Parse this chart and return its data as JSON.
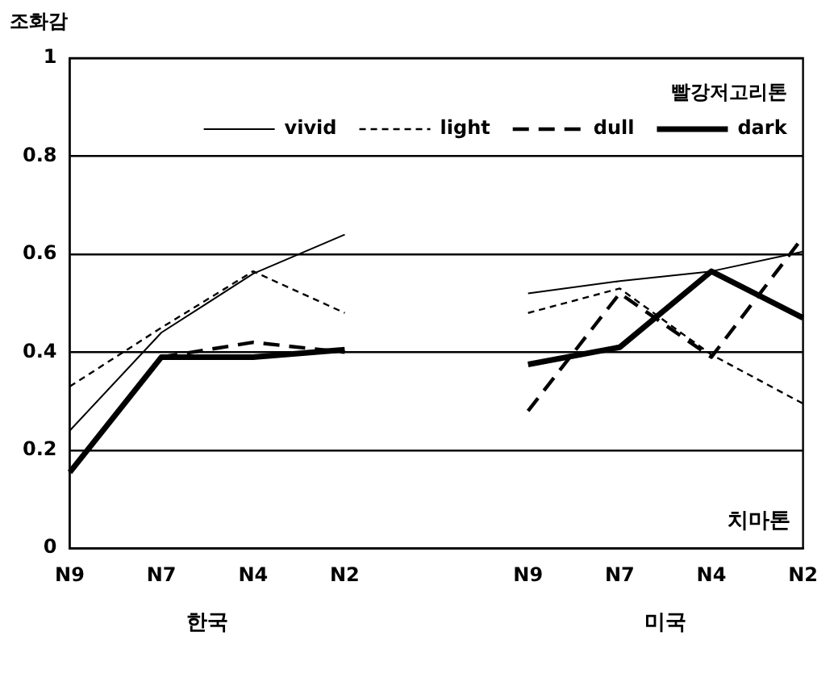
{
  "chart_data": {
    "type": "line",
    "ylabel": "조화감",
    "legend_title": "빨강저고리톤",
    "annotations": [
      "치마톤",
      "한국",
      "미국"
    ],
    "categories": [
      "N9",
      "N7",
      "N4",
      "N2",
      null,
      "N9",
      "N7",
      "N4",
      "N2"
    ],
    "series": [
      {
        "name": "vivid",
        "color": "#000000",
        "line_style": "solid",
        "values": [
          0.24,
          0.44,
          0.56,
          0.64,
          null,
          0.52,
          0.545,
          0.565,
          0.605
        ]
      },
      {
        "name": "light",
        "color": "#000000",
        "line_style": "dotted",
        "values": [
          0.33,
          0.45,
          0.565,
          0.48,
          null,
          0.48,
          0.53,
          0.395,
          0.295
        ]
      },
      {
        "name": "dull",
        "color": "#000000",
        "line_style": "dashed",
        "values": [
          null,
          0.39,
          0.42,
          0.4,
          null,
          0.28,
          0.52,
          0.39,
          0.635
        ]
      },
      {
        "name": "dark",
        "color": "#000000",
        "line_style": "solid",
        "values": [
          0.155,
          0.39,
          0.39,
          0.405,
          null,
          0.375,
          0.41,
          0.565,
          0.47
        ]
      }
    ],
    "ylim": [
      0,
      1
    ],
    "yticks": [
      0,
      0.2,
      0.4,
      0.6,
      0.8,
      1
    ],
    "grid": "y",
    "legend": "top right",
    "marker": "none"
  }
}
